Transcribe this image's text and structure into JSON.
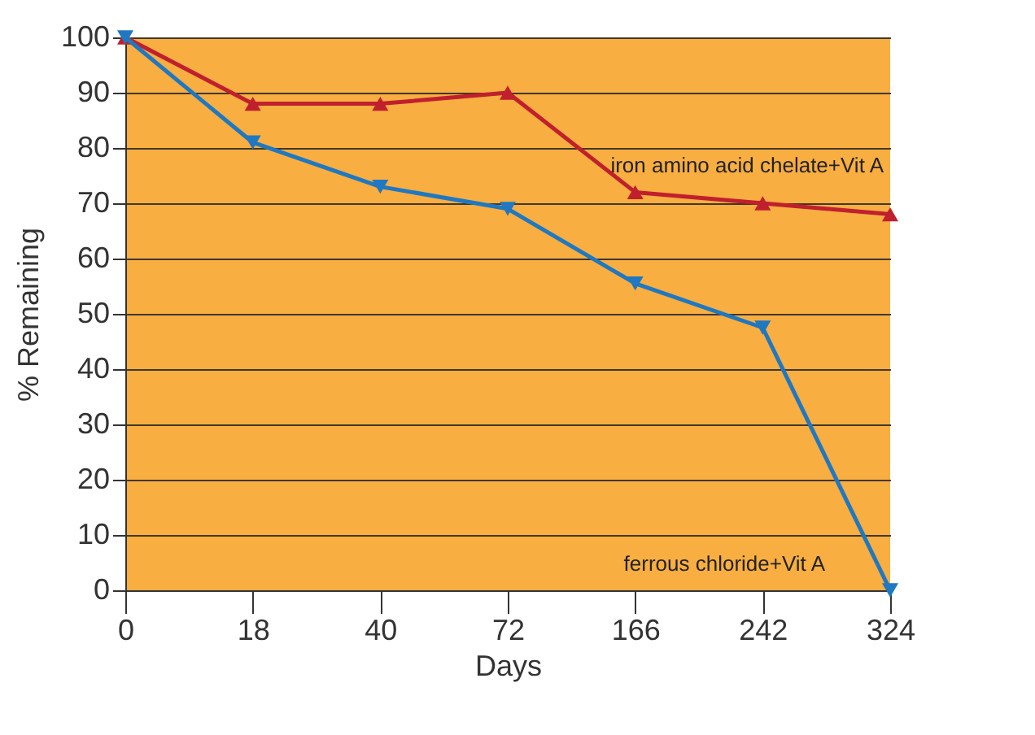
{
  "chart_data": {
    "type": "line",
    "xlabel": "Days",
    "ylabel": "% Remaining",
    "categories": [
      "0",
      "18",
      "40",
      "72",
      "166",
      "242",
      "324"
    ],
    "series": [
      {
        "name": "iron amino acid chelate+Vit A",
        "color": "#c0202e",
        "marker": "triangle",
        "values": [
          100,
          88,
          88,
          90,
          72,
          70,
          68
        ]
      },
      {
        "name": "ferrous chloride+Vit A",
        "color": "#1f78c1",
        "marker": "triangle-down",
        "values": [
          100,
          81,
          73,
          69,
          55.5,
          47.5,
          0
        ]
      }
    ],
    "ylim": [
      0,
      100
    ],
    "yticks": [
      0,
      10,
      20,
      30,
      40,
      50,
      60,
      70,
      80,
      90,
      100
    ],
    "grid": "y",
    "legend": false
  }
}
